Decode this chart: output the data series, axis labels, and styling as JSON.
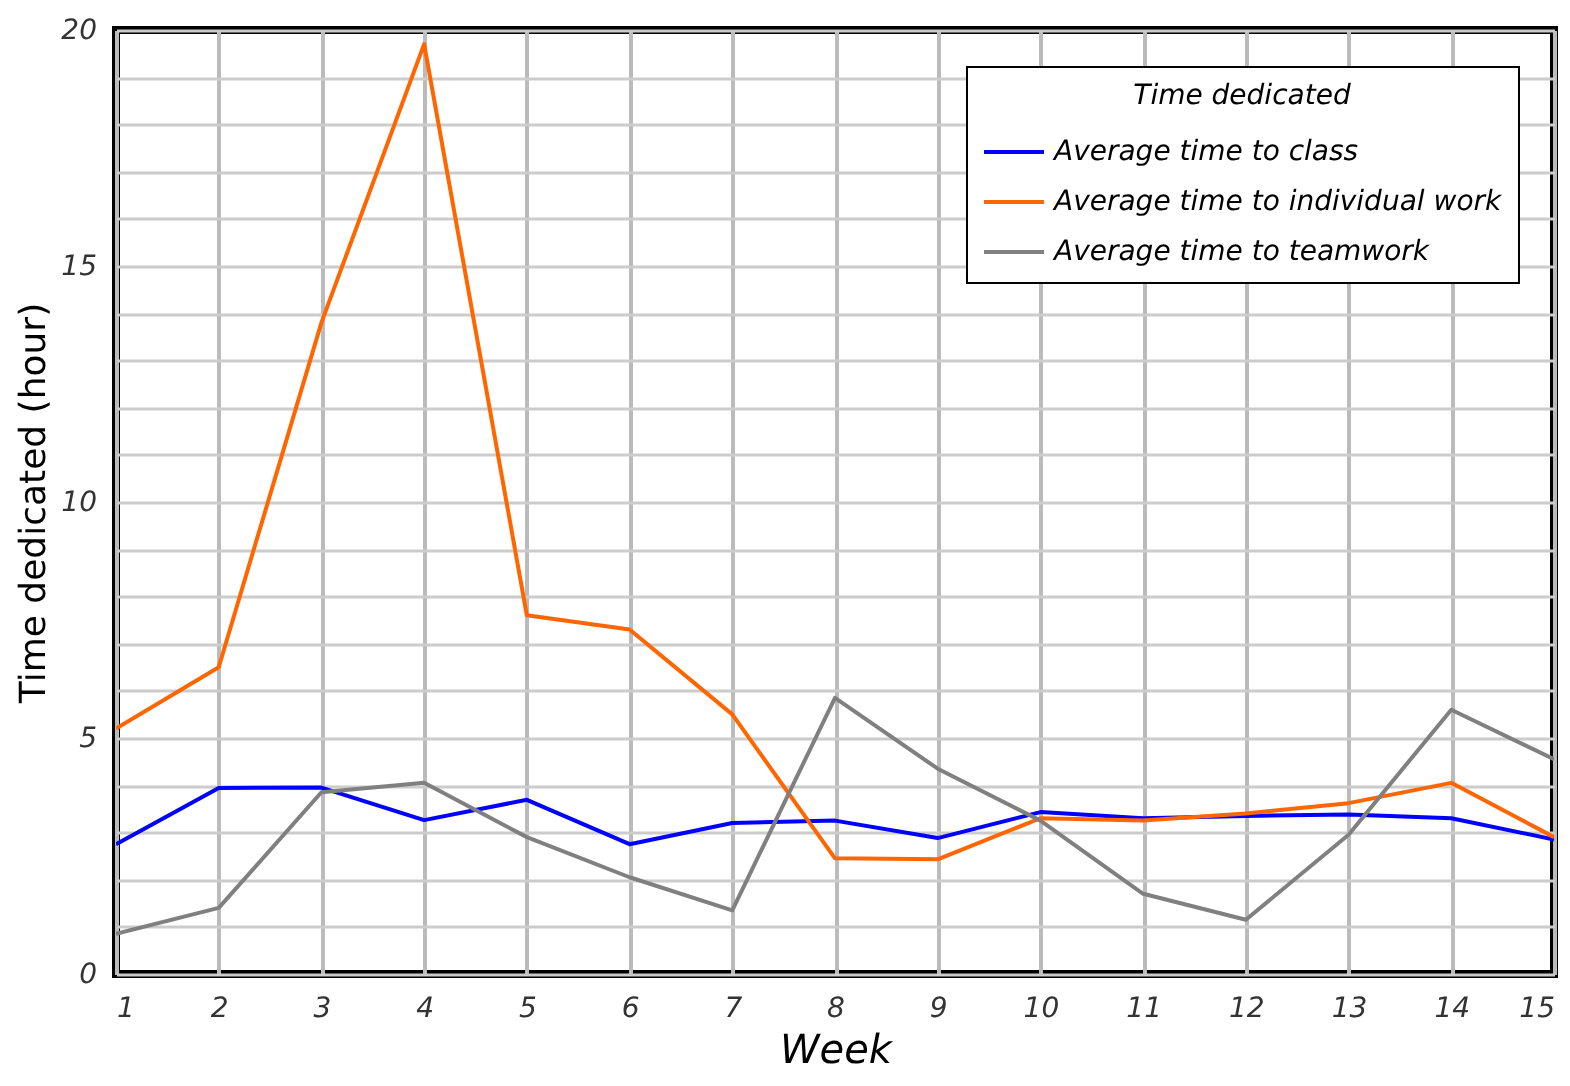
{
  "chart_data": {
    "type": "line",
    "xlabel": "Week",
    "ylabel": "Time dedicated (hour)",
    "legend_title": "Time dedicated",
    "legend": "top right",
    "grid": true,
    "line_style": "solid",
    "marker": "none",
    "x": [
      1,
      2,
      3,
      4,
      5,
      6,
      7,
      8,
      9,
      10,
      11,
      12,
      13,
      14,
      15
    ],
    "xlim": [
      1,
      15
    ],
    "xticks": [
      1,
      2,
      3,
      4,
      5,
      6,
      7,
      8,
      9,
      10,
      11,
      12,
      13,
      14,
      15
    ],
    "ylim": [
      0,
      20
    ],
    "yticks": [
      0,
      {
        "value": 1,
        "label": null
      },
      {
        "value": 2,
        "label": null
      },
      {
        "value": 3,
        "label": null
      },
      {
        "value": 4,
        "label": null
      },
      5,
      {
        "value": 6,
        "label": null
      },
      {
        "value": 7,
        "label": null
      },
      {
        "value": 8,
        "label": null
      },
      {
        "value": 9,
        "label": null
      },
      10,
      {
        "value": 11,
        "label": null
      },
      {
        "value": 12,
        "label": null
      },
      {
        "value": 13,
        "label": null
      },
      {
        "value": 14,
        "label": null
      },
      15,
      {
        "value": 16,
        "label": null
      },
      {
        "value": 17,
        "label": null
      },
      {
        "value": 18,
        "label": null
      },
      {
        "value": 19,
        "label": null
      },
      20
    ],
    "series": [
      {
        "name": "Average time to class",
        "color": "#0000ff",
        "values": [
          2.75,
          3.94,
          3.95,
          3.26,
          3.69,
          2.75,
          3.2,
          3.25,
          2.88,
          3.43,
          3.3,
          3.35,
          3.38,
          3.3,
          2.85
        ]
      },
      {
        "name": "Average time to individual work",
        "color": "#ff6600",
        "values": [
          5.2,
          6.5,
          13.8,
          19.7,
          7.6,
          7.3,
          5.5,
          2.45,
          2.43,
          3.3,
          3.25,
          3.4,
          3.62,
          4.05,
          2.9
        ]
      },
      {
        "name": "Average time to teamwork",
        "color": "#808080",
        "values": [
          0.85,
          1.4,
          3.85,
          4.05,
          2.9,
          2.05,
          1.35,
          5.85,
          4.35,
          3.25,
          1.7,
          1.15,
          2.95,
          5.6,
          4.55
        ]
      }
    ]
  }
}
